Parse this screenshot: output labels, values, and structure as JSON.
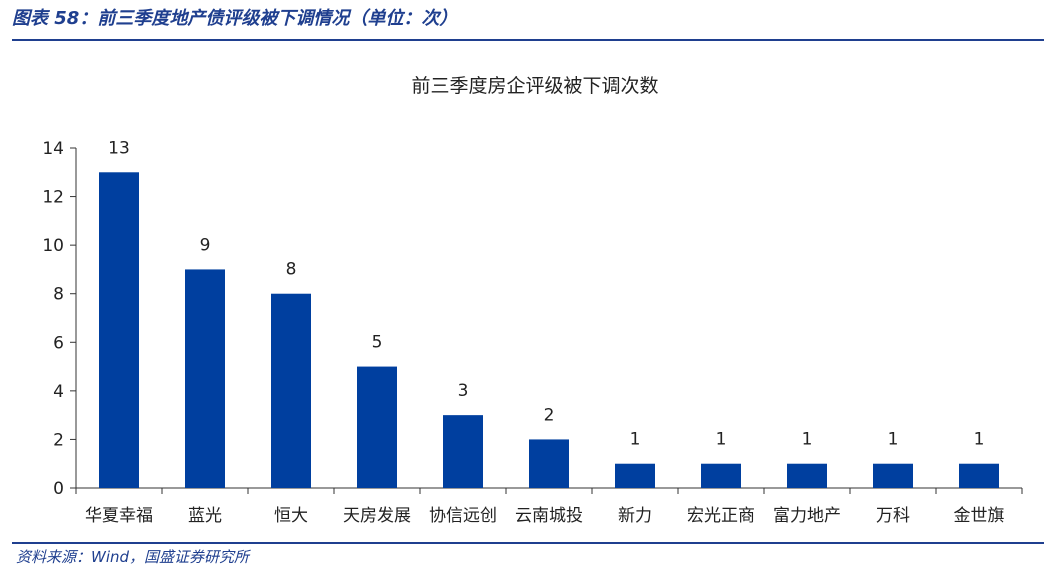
{
  "figure_title": "图表 58：前三季度地产债评级被下调情况（单位：次）",
  "source": "资料来源：Wind，国盛证券研究所",
  "colors": {
    "bar": "#003f9f",
    "accent": "#1f3f8f"
  },
  "chart_data": {
    "type": "bar",
    "title": "前三季度房企评级被下调次数",
    "xlabel": "",
    "ylabel": "",
    "categories": [
      "华夏幸福",
      "蓝光",
      "恒大",
      "天房发展",
      "协信远创",
      "云南城投",
      "新力",
      "宏光正商",
      "富力地产",
      "万科",
      "金世旗"
    ],
    "values": [
      13,
      9,
      8,
      5,
      3,
      2,
      1,
      1,
      1,
      1,
      1
    ],
    "ylim": [
      0,
      14
    ],
    "yticks": [
      0,
      2,
      4,
      6,
      8,
      10,
      12,
      14
    ],
    "grid": false,
    "legend": "none"
  }
}
